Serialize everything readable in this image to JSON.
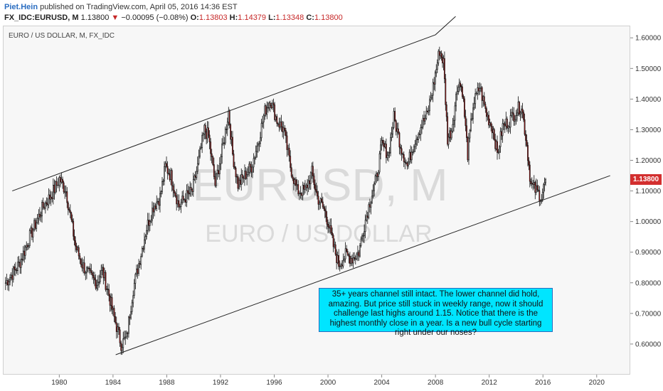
{
  "header": {
    "author": "Piet.Hein",
    "published": "published on TradingView.com, April 05, 2016 14:36 EST",
    "symbol": "FX_IDC:EURUSD, M",
    "last": "1.13800",
    "change_arrow": "▼",
    "change": "−0.00095 (−0.08%)",
    "o_label": "O:",
    "o_value": "1.13803",
    "h_label": "H:",
    "h_value": "1.14379",
    "l_label": "L:",
    "l_value": "1.13348",
    "c_label": "C:",
    "c_value": "1.13800"
  },
  "series_title": "EURO / US DOLLAR, M, FX_IDC",
  "watermark": {
    "symbol": "EURUSD, M",
    "name": "EURO / US DOLLAR"
  },
  "annotation": "35+ years channel still intact. The lower channel did hold, amazing. But price still stuck in weekly range, now it should challenge last highs around 1.15. Notice that there is the highest monthly close in a year. Is a new bull cycle starting right under our noses?",
  "price_tag": "1.13800",
  "colors": {
    "up": "#ffffff",
    "down": "#b71c1c",
    "wick": "#111111",
    "tag": "#d32f2f",
    "note_bg": "#00e5ff"
  },
  "chart_data": {
    "type": "candlestick",
    "x_ticks": [
      "1980",
      "1984",
      "1988",
      "1992",
      "1996",
      "2000",
      "2004",
      "2008",
      "2012",
      "2016",
      "2020"
    ],
    "y_ticks": [
      "0.60000",
      "0.70000",
      "0.80000",
      "0.90000",
      "1.00000",
      "1.10000",
      "1.20000",
      "1.30000",
      "1.40000",
      "1.50000",
      "1.60000"
    ],
    "xlim": [
      1975.8,
      2022.5
    ],
    "ylim": [
      0.5,
      1.64
    ],
    "last_price": 1.138,
    "channel": {
      "upper": [
        [
          1976.5,
          1.1
        ],
        [
          2008.0,
          1.61
        ],
        [
          2009.5,
          1.67
        ]
      ],
      "lower": [
        [
          1984.2,
          0.565
        ],
        [
          2021.0,
          1.15
        ]
      ]
    },
    "closes": [
      [
        1976.0,
        0.8
      ],
      [
        1977.0,
        0.86
      ],
      [
        1977.8,
        0.95
      ],
      [
        1978.3,
        1.0
      ],
      [
        1978.8,
        1.05
      ],
      [
        1979.3,
        1.08
      ],
      [
        1979.8,
        1.12
      ],
      [
        1980.0,
        1.14
      ],
      [
        1980.5,
        1.1
      ],
      [
        1980.9,
        1.0
      ],
      [
        1981.2,
        0.92
      ],
      [
        1981.7,
        0.86
      ],
      [
        1982.3,
        0.82
      ],
      [
        1982.8,
        0.8
      ],
      [
        1983.2,
        0.84
      ],
      [
        1983.7,
        0.76
      ],
      [
        1984.0,
        0.7
      ],
      [
        1984.6,
        0.6
      ],
      [
        1985.0,
        0.62
      ],
      [
        1985.5,
        0.78
      ],
      [
        1986.0,
        0.88
      ],
      [
        1986.5,
        0.98
      ],
      [
        1987.0,
        1.05
      ],
      [
        1987.5,
        1.08
      ],
      [
        1987.9,
        1.18
      ],
      [
        1988.3,
        1.15
      ],
      [
        1988.9,
        1.05
      ],
      [
        1989.4,
        1.08
      ],
      [
        1989.9,
        1.1
      ],
      [
        1990.3,
        1.18
      ],
      [
        1990.8,
        1.3
      ],
      [
        1991.1,
        1.28
      ],
      [
        1991.6,
        1.12
      ],
      [
        1992.2,
        1.25
      ],
      [
        1992.6,
        1.36
      ],
      [
        1992.9,
        1.22
      ],
      [
        1993.3,
        1.12
      ],
      [
        1993.8,
        1.15
      ],
      [
        1994.3,
        1.18
      ],
      [
        1994.8,
        1.26
      ],
      [
        1995.3,
        1.36
      ],
      [
        1995.7,
        1.4
      ],
      [
        1996.2,
        1.33
      ],
      [
        1996.7,
        1.3
      ],
      [
        1997.2,
        1.18
      ],
      [
        1997.7,
        1.1
      ],
      [
        1998.3,
        1.1
      ],
      [
        1998.8,
        1.16
      ],
      [
        1999.2,
        1.08
      ],
      [
        1999.7,
        1.04
      ],
      [
        2000.0,
        1.0
      ],
      [
        2000.4,
        0.92
      ],
      [
        2000.8,
        0.86
      ],
      [
        2001.3,
        0.89
      ],
      [
        2001.8,
        0.88
      ],
      [
        2002.3,
        0.9
      ],
      [
        2002.7,
        0.99
      ],
      [
        2003.2,
        1.08
      ],
      [
        2003.6,
        1.14
      ],
      [
        2004.0,
        1.25
      ],
      [
        2004.5,
        1.22
      ],
      [
        2004.9,
        1.34
      ],
      [
        2005.4,
        1.25
      ],
      [
        2005.9,
        1.18
      ],
      [
        2006.4,
        1.26
      ],
      [
        2006.9,
        1.31
      ],
      [
        2007.4,
        1.35
      ],
      [
        2007.9,
        1.46
      ],
      [
        2008.3,
        1.56
      ],
      [
        2008.6,
        1.52
      ],
      [
        2008.9,
        1.27
      ],
      [
        2009.2,
        1.3
      ],
      [
        2009.7,
        1.46
      ],
      [
        2010.0,
        1.43
      ],
      [
        2010.4,
        1.22
      ],
      [
        2010.8,
        1.38
      ],
      [
        2011.3,
        1.44
      ],
      [
        2011.8,
        1.35
      ],
      [
        2012.3,
        1.3
      ],
      [
        2012.6,
        1.22
      ],
      [
        2013.0,
        1.31
      ],
      [
        2013.5,
        1.33
      ],
      [
        2014.0,
        1.36
      ],
      [
        2014.4,
        1.38
      ],
      [
        2014.8,
        1.25
      ],
      [
        2015.1,
        1.12
      ],
      [
        2015.5,
        1.1
      ],
      [
        2015.9,
        1.08
      ],
      [
        2016.2,
        1.138
      ]
    ]
  }
}
